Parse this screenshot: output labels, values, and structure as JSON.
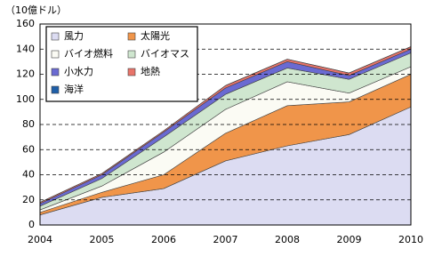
{
  "chart_data": {
    "type": "stacked_area",
    "unit_label": "（10億ドル）",
    "categories": [
      "2004",
      "2005",
      "2006",
      "2007",
      "2008",
      "2009",
      "2010"
    ],
    "series": [
      {
        "name": "風力",
        "color": "#dcdcf2",
        "values": [
          8,
          22,
          29,
          51,
          63,
          72,
          94
        ]
      },
      {
        "name": "太陽光",
        "color": "#f0954a",
        "values": [
          2,
          4,
          11,
          22,
          32,
          26,
          26
        ]
      },
      {
        "name": "バイオ燃料",
        "color": "#fbfbf4",
        "values": [
          2,
          5,
          18,
          19,
          19,
          7,
          6
        ]
      },
      {
        "name": "バイオマス",
        "color": "#cfe6cf",
        "values": [
          3,
          6,
          12,
          12,
          11,
          11,
          11
        ]
      },
      {
        "name": "小水力",
        "color": "#6a6ad2",
        "values": [
          2,
          3,
          4,
          5,
          5,
          3,
          3
        ]
      },
      {
        "name": "地熱",
        "color": "#e8746a",
        "values": [
          1,
          1,
          1,
          2,
          2,
          2,
          2
        ]
      },
      {
        "name": "海洋",
        "color": "#1f5fa8",
        "values": [
          0,
          0,
          0,
          0,
          0,
          0,
          0
        ]
      }
    ],
    "ylim": [
      0,
      160
    ],
    "yticks": [
      0,
      20,
      40,
      60,
      80,
      100,
      120,
      140,
      160
    ],
    "grid": true
  }
}
